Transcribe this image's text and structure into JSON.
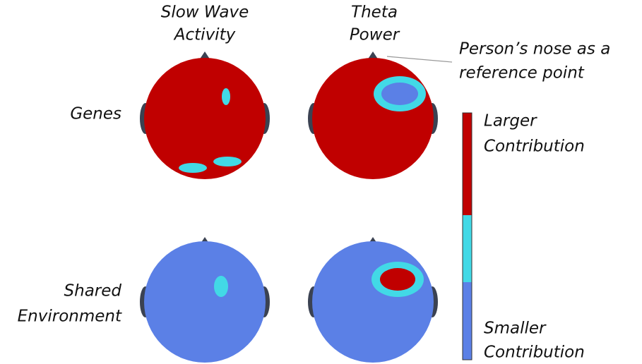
{
  "columns": [
    {
      "lines": [
        "Slow Wave",
        "Activity"
      ]
    },
    {
      "lines": [
        "Theta",
        "Power"
      ]
    }
  ],
  "rows": [
    {
      "lines": [
        "Genes"
      ]
    },
    {
      "lines": [
        "Shared",
        "Environment"
      ]
    }
  ],
  "annotation": {
    "lines": [
      "Person’s nose as a",
      "reference point"
    ]
  },
  "legend": {
    "top_lines": [
      "Larger",
      "Contribution"
    ],
    "bottom_lines": [
      "Smaller",
      "Contribution"
    ]
  }
}
